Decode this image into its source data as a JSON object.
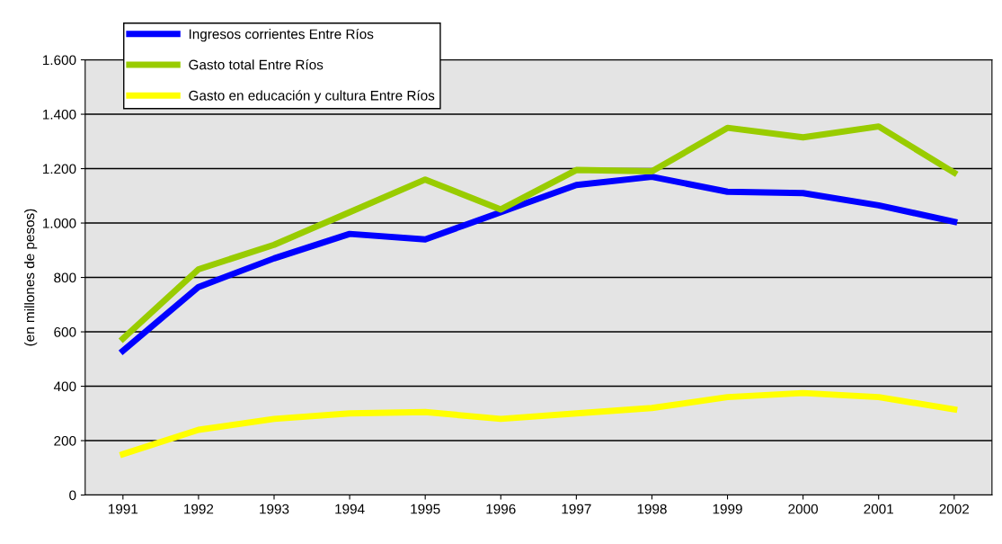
{
  "chart_data": {
    "type": "line",
    "ylabel": "(en millones de pesos)",
    "categories": [
      "1991",
      "1992",
      "1993",
      "1994",
      "1995",
      "1996",
      "1997",
      "1998",
      "1999",
      "2000",
      "2001",
      "2002"
    ],
    "series": [
      {
        "name": "Ingresos corrientes Entre Ríos",
        "color": "#0000ff",
        "values": [
          530,
          765,
          870,
          960,
          940,
          1040,
          1140,
          1170,
          1115,
          1110,
          1065,
          1005
        ]
      },
      {
        "name": "Gasto total Entre Ríos",
        "color": "#99cc00",
        "values": [
          575,
          830,
          920,
          1040,
          1160,
          1050,
          1195,
          1190,
          1350,
          1315,
          1355,
          1185
        ]
      },
      {
        "name": "Gasto en educación y cultura Entre Ríos",
        "color": "#ffff00",
        "values": [
          150,
          240,
          280,
          300,
          305,
          280,
          300,
          320,
          360,
          375,
          360,
          315
        ]
      }
    ],
    "ylim": [
      0,
      1600
    ],
    "yticks": [
      0,
      200,
      400,
      600,
      800,
      {
        "value": 1000,
        "label": "1.000"
      },
      {
        "value": 1200,
        "label": "1.200"
      },
      {
        "value": 1400,
        "label": "1.400"
      },
      {
        "value": 1600,
        "label": "1.600"
      }
    ],
    "grid": "y",
    "legend": "top left",
    "marker": "none",
    "line_style": "solid"
  }
}
